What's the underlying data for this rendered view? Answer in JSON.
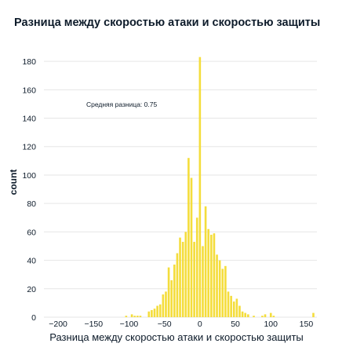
{
  "chart_data": {
    "type": "bar",
    "title": "Разница между скоростью атаки и скоростью защиты",
    "xlabel": "Разница между скоростью атаки и скоростью защиты",
    "ylabel": "count",
    "annotation": "Средняя разница: 0.75",
    "xlim": [
      -220,
      165
    ],
    "ylim": [
      0,
      190
    ],
    "bin_width": 4,
    "x_ticks": [
      -200,
      -150,
      -100,
      -50,
      0,
      50,
      100,
      150
    ],
    "y_ticks": [
      0,
      20,
      40,
      60,
      80,
      100,
      120,
      140,
      160,
      180
    ],
    "grid": true,
    "colors": {
      "bar": "#f4dd3c",
      "text": "#0d1b2a",
      "grid": "#e6e6e6"
    },
    "bins": [
      {
        "x": -104,
        "count": 1
      },
      {
        "x": -96,
        "count": 2
      },
      {
        "x": -92,
        "count": 1
      },
      {
        "x": -88,
        "count": 1
      },
      {
        "x": -84,
        "count": 1
      },
      {
        "x": -72,
        "count": 4
      },
      {
        "x": -68,
        "count": 5
      },
      {
        "x": -64,
        "count": 6
      },
      {
        "x": -60,
        "count": 8
      },
      {
        "x": -56,
        "count": 9
      },
      {
        "x": -52,
        "count": 16
      },
      {
        "x": -48,
        "count": 18
      },
      {
        "x": -44,
        "count": 35
      },
      {
        "x": -40,
        "count": 26
      },
      {
        "x": -36,
        "count": 37
      },
      {
        "x": -32,
        "count": 45
      },
      {
        "x": -28,
        "count": 56
      },
      {
        "x": -24,
        "count": 53
      },
      {
        "x": -20,
        "count": 60
      },
      {
        "x": -16,
        "count": 112
      },
      {
        "x": -12,
        "count": 98
      },
      {
        "x": -8,
        "count": 53
      },
      {
        "x": -4,
        "count": 70
      },
      {
        "x": 0,
        "count": 183
      },
      {
        "x": 4,
        "count": 50
      },
      {
        "x": 8,
        "count": 78
      },
      {
        "x": 12,
        "count": 62
      },
      {
        "x": 16,
        "count": 58
      },
      {
        "x": 20,
        "count": 59
      },
      {
        "x": 24,
        "count": 44
      },
      {
        "x": 28,
        "count": 40
      },
      {
        "x": 32,
        "count": 34
      },
      {
        "x": 36,
        "count": 36
      },
      {
        "x": 40,
        "count": 18
      },
      {
        "x": 44,
        "count": 15
      },
      {
        "x": 48,
        "count": 11
      },
      {
        "x": 52,
        "count": 13
      },
      {
        "x": 56,
        "count": 8
      },
      {
        "x": 60,
        "count": 4
      },
      {
        "x": 64,
        "count": 3
      },
      {
        "x": 68,
        "count": 2
      },
      {
        "x": 76,
        "count": 1
      },
      {
        "x": 88,
        "count": 1
      },
      {
        "x": 92,
        "count": 2
      },
      {
        "x": 100,
        "count": 3
      },
      {
        "x": 104,
        "count": 1
      },
      {
        "x": 160,
        "count": 3
      }
    ]
  }
}
